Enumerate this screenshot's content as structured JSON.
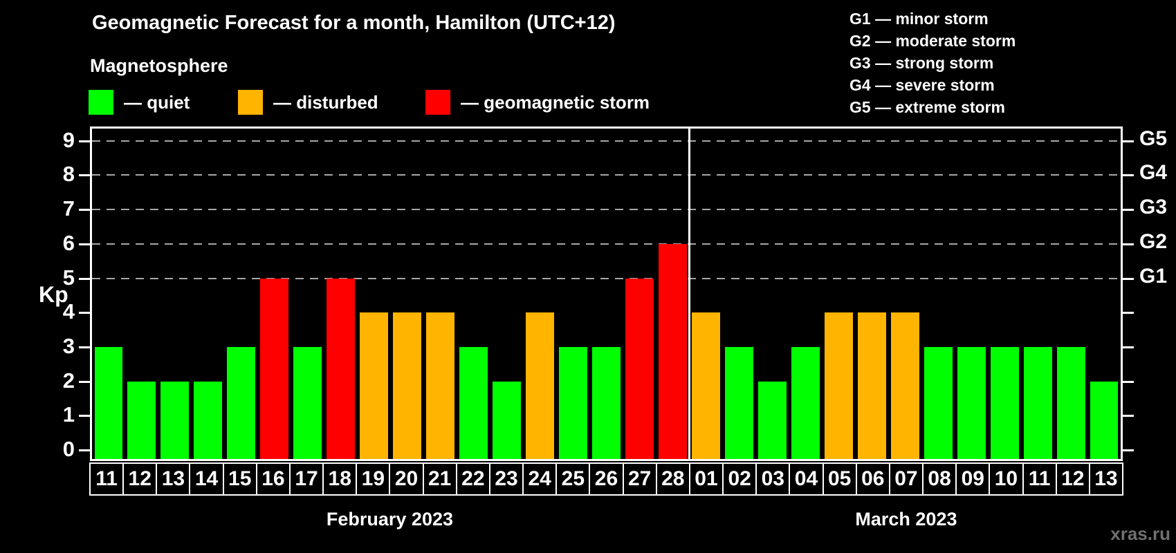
{
  "header": {
    "title": "Geomagnetic Forecast for a month, Hamilton (UTC+12)",
    "subtitle": "Magnetosphere",
    "legend": [
      {
        "key": "quiet",
        "label": "— quiet"
      },
      {
        "key": "disturbed",
        "label": "— disturbed"
      },
      {
        "key": "storm",
        "label": "— geomagnetic storm"
      }
    ],
    "g_scale_legend": [
      "G1 — minor storm",
      "G2 — moderate storm",
      "G3 — strong storm",
      "G4 — severe storm",
      "G5 — extreme storm"
    ]
  },
  "colors": {
    "quiet": "#00ff00",
    "disturbed": "#ffb400",
    "storm": "#ff0000",
    "grid": "#a8a8a8",
    "frame": "#ffffff",
    "background": "#000000",
    "watermark": "#707070"
  },
  "chart_data": {
    "type": "bar",
    "title": "Geomagnetic Forecast for a month, Hamilton (UTC+12)",
    "ylabel": "Kp",
    "xlabel": "",
    "ylim": [
      0,
      9
    ],
    "yticks": [
      0,
      1,
      2,
      3,
      4,
      5,
      6,
      7,
      8,
      9
    ],
    "gridlines_at": [
      5,
      6,
      7,
      8,
      9
    ],
    "grid_style": "dashed horizontal lines at storm levels only",
    "legend_position": "top-left",
    "right_axis": [
      {
        "kp": 5,
        "label": "G1"
      },
      {
        "kp": 6,
        "label": "G2"
      },
      {
        "kp": 7,
        "label": "G3"
      },
      {
        "kp": 8,
        "label": "G4"
      },
      {
        "kp": 9,
        "label": "G5"
      }
    ],
    "months": [
      {
        "label": "February 2023",
        "days": [
          {
            "day": "11",
            "kp": 3,
            "status": "quiet"
          },
          {
            "day": "12",
            "kp": 2,
            "status": "quiet"
          },
          {
            "day": "13",
            "kp": 2,
            "status": "quiet"
          },
          {
            "day": "14",
            "kp": 2,
            "status": "quiet"
          },
          {
            "day": "15",
            "kp": 3,
            "status": "quiet"
          },
          {
            "day": "16",
            "kp": 5,
            "status": "storm"
          },
          {
            "day": "17",
            "kp": 3,
            "status": "quiet"
          },
          {
            "day": "18",
            "kp": 5,
            "status": "storm"
          },
          {
            "day": "19",
            "kp": 4,
            "status": "disturbed"
          },
          {
            "day": "20",
            "kp": 4,
            "status": "disturbed"
          },
          {
            "day": "21",
            "kp": 4,
            "status": "disturbed"
          },
          {
            "day": "22",
            "kp": 3,
            "status": "quiet"
          },
          {
            "day": "23",
            "kp": 2,
            "status": "quiet"
          },
          {
            "day": "24",
            "kp": 4,
            "status": "disturbed"
          },
          {
            "day": "25",
            "kp": 3,
            "status": "quiet"
          },
          {
            "day": "26",
            "kp": 3,
            "status": "quiet"
          },
          {
            "day": "27",
            "kp": 5,
            "status": "storm"
          },
          {
            "day": "28",
            "kp": 6,
            "status": "storm"
          }
        ]
      },
      {
        "label": "March 2023",
        "days": [
          {
            "day": "01",
            "kp": 4,
            "status": "disturbed"
          },
          {
            "day": "02",
            "kp": 3,
            "status": "quiet"
          },
          {
            "day": "03",
            "kp": 2,
            "status": "quiet"
          },
          {
            "day": "04",
            "kp": 3,
            "status": "quiet"
          },
          {
            "day": "05",
            "kp": 4,
            "status": "disturbed"
          },
          {
            "day": "06",
            "kp": 4,
            "status": "disturbed"
          },
          {
            "day": "07",
            "kp": 4,
            "status": "disturbed"
          },
          {
            "day": "08",
            "kp": 3,
            "status": "quiet"
          },
          {
            "day": "09",
            "kp": 3,
            "status": "quiet"
          },
          {
            "day": "10",
            "kp": 3,
            "status": "quiet"
          },
          {
            "day": "11",
            "kp": 3,
            "status": "quiet"
          },
          {
            "day": "12",
            "kp": 3,
            "status": "quiet"
          },
          {
            "day": "13",
            "kp": 2,
            "status": "quiet"
          }
        ]
      }
    ]
  },
  "watermark": "xras.ru"
}
